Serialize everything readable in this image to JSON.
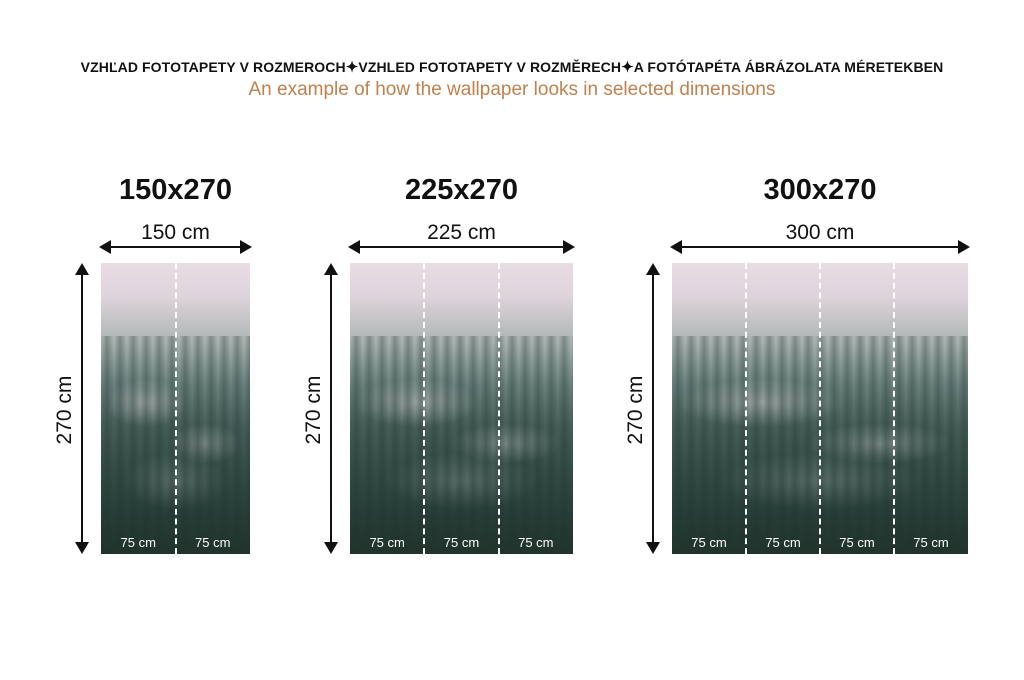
{
  "header": {
    "titles": [
      "VZHĽAD FOTOTAPETY V ROZMEROCH",
      "VZHLED FOTOTAPETY V ROZMĚRECH",
      "A FOTÓTAPÉTA ÁBRÁZOLATA MÉRETEKBEN"
    ],
    "separator_icon": "sparkle-icon",
    "subtitle": "An example of how the wallpaper looks in selected dimensions"
  },
  "colors": {
    "subtitle": "#c0814e",
    "text": "#111111",
    "fog": "#e9dde4",
    "forest": "#2e4640"
  },
  "panels": [
    {
      "title": "150x270",
      "width_label": "150 cm",
      "height_label": "270 cm",
      "segments": [
        "75 cm",
        "75 cm"
      ]
    },
    {
      "title": "225x270",
      "width_label": "225 cm",
      "height_label": "270 cm",
      "segments": [
        "75 cm",
        "75 cm",
        "75 cm"
      ]
    },
    {
      "title": "300x270",
      "width_label": "300 cm",
      "height_label": "270 cm",
      "segments": [
        "75 cm",
        "75 cm",
        "75 cm",
        "75 cm"
      ]
    }
  ]
}
